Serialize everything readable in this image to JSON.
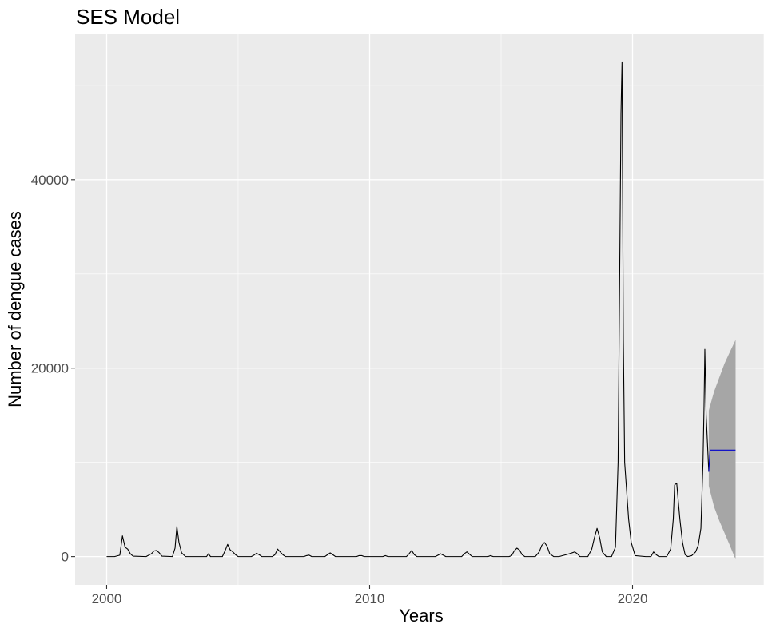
{
  "chart_data": {
    "type": "line",
    "title": "SES Model",
    "xlabel": "Years",
    "ylabel": "Number of dengue cases",
    "xlim": [
      1998.8,
      2025.0
    ],
    "ylim": [
      -3000,
      55500
    ],
    "x_ticks": [
      2000,
      2010,
      2020
    ],
    "y_ticks": [
      0,
      20000,
      40000
    ],
    "grid": true,
    "background": "#ebebeb",
    "grid_color": "#ffffff",
    "series": [
      {
        "color": "#000000",
        "points": [
          [
            2000.0,
            0
          ],
          [
            2000.3,
            0
          ],
          [
            2000.5,
            150
          ],
          [
            2000.6,
            2200
          ],
          [
            2000.7,
            1000
          ],
          [
            2000.8,
            800
          ],
          [
            2000.9,
            300
          ],
          [
            2001.0,
            50
          ],
          [
            2001.5,
            0
          ],
          [
            2001.7,
            300
          ],
          [
            2001.8,
            600
          ],
          [
            2001.9,
            650
          ],
          [
            2002.0,
            400
          ],
          [
            2002.1,
            50
          ],
          [
            2002.5,
            0
          ],
          [
            2002.6,
            900
          ],
          [
            2002.67,
            3200
          ],
          [
            2002.75,
            1500
          ],
          [
            2002.85,
            400
          ],
          [
            2003.0,
            0
          ],
          [
            2003.8,
            0
          ],
          [
            2003.87,
            300
          ],
          [
            2003.95,
            0
          ],
          [
            2004.4,
            0
          ],
          [
            2004.5,
            600
          ],
          [
            2004.6,
            1300
          ],
          [
            2004.7,
            700
          ],
          [
            2004.8,
            500
          ],
          [
            2004.9,
            200
          ],
          [
            2005.0,
            0
          ],
          [
            2005.5,
            0
          ],
          [
            2005.6,
            150
          ],
          [
            2005.7,
            350
          ],
          [
            2005.8,
            200
          ],
          [
            2005.9,
            0
          ],
          [
            2006.3,
            0
          ],
          [
            2006.4,
            200
          ],
          [
            2006.5,
            800
          ],
          [
            2006.6,
            500
          ],
          [
            2006.7,
            200
          ],
          [
            2006.8,
            0
          ],
          [
            2007.5,
            0
          ],
          [
            2007.6,
            100
          ],
          [
            2007.7,
            150
          ],
          [
            2007.8,
            0
          ],
          [
            2008.3,
            0
          ],
          [
            2008.4,
            200
          ],
          [
            2008.5,
            400
          ],
          [
            2008.6,
            200
          ],
          [
            2008.7,
            0
          ],
          [
            2009.5,
            0
          ],
          [
            2009.6,
            100
          ],
          [
            2009.7,
            100
          ],
          [
            2009.8,
            0
          ],
          [
            2010.5,
            0
          ],
          [
            2010.6,
            100
          ],
          [
            2010.7,
            0
          ],
          [
            2011.4,
            0
          ],
          [
            2011.5,
            300
          ],
          [
            2011.6,
            650
          ],
          [
            2011.7,
            200
          ],
          [
            2011.8,
            0
          ],
          [
            2012.5,
            0
          ],
          [
            2012.6,
            150
          ],
          [
            2012.7,
            300
          ],
          [
            2012.8,
            150
          ],
          [
            2012.9,
            0
          ],
          [
            2013.5,
            0
          ],
          [
            2013.6,
            300
          ],
          [
            2013.7,
            500
          ],
          [
            2013.8,
            250
          ],
          [
            2013.9,
            0
          ],
          [
            2014.5,
            0
          ],
          [
            2014.6,
            100
          ],
          [
            2014.7,
            0
          ],
          [
            2015.3,
            0
          ],
          [
            2015.4,
            100
          ],
          [
            2015.5,
            600
          ],
          [
            2015.6,
            900
          ],
          [
            2015.7,
            700
          ],
          [
            2015.8,
            200
          ],
          [
            2015.9,
            0
          ],
          [
            2016.3,
            0
          ],
          [
            2016.45,
            500
          ],
          [
            2016.55,
            1200
          ],
          [
            2016.65,
            1500
          ],
          [
            2016.75,
            1100
          ],
          [
            2016.85,
            300
          ],
          [
            2017.0,
            0
          ],
          [
            2017.2,
            0
          ],
          [
            2017.4,
            150
          ],
          [
            2017.6,
            300
          ],
          [
            2017.8,
            500
          ],
          [
            2017.9,
            300
          ],
          [
            2018.0,
            0
          ],
          [
            2018.3,
            0
          ],
          [
            2018.45,
            800
          ],
          [
            2018.55,
            2000
          ],
          [
            2018.65,
            3000
          ],
          [
            2018.75,
            2000
          ],
          [
            2018.85,
            500
          ],
          [
            2019.0,
            0
          ],
          [
            2019.2,
            0
          ],
          [
            2019.35,
            1000
          ],
          [
            2019.45,
            10000
          ],
          [
            2019.52,
            33000
          ],
          [
            2019.56,
            47000
          ],
          [
            2019.6,
            52500
          ],
          [
            2019.65,
            23000
          ],
          [
            2019.7,
            10000
          ],
          [
            2019.75,
            8000
          ],
          [
            2019.85,
            4000
          ],
          [
            2019.95,
            1500
          ],
          [
            2020.1,
            100
          ],
          [
            2020.5,
            0
          ],
          [
            2020.7,
            0
          ],
          [
            2020.8,
            500
          ],
          [
            2020.9,
            200
          ],
          [
            2021.0,
            0
          ],
          [
            2021.3,
            0
          ],
          [
            2021.45,
            800
          ],
          [
            2021.55,
            4000
          ],
          [
            2021.6,
            7600
          ],
          [
            2021.68,
            7800
          ],
          [
            2021.72,
            6500
          ],
          [
            2021.8,
            4000
          ],
          [
            2021.9,
            1500
          ],
          [
            2022.0,
            200
          ],
          [
            2022.1,
            0
          ],
          [
            2022.25,
            100
          ],
          [
            2022.4,
            500
          ],
          [
            2022.5,
            1200
          ],
          [
            2022.6,
            3000
          ],
          [
            2022.68,
            10000
          ],
          [
            2022.72,
            16000
          ],
          [
            2022.75,
            22000
          ],
          [
            2022.8,
            15000
          ],
          [
            2022.85,
            12000
          ],
          [
            2022.9,
            9000
          ]
        ]
      },
      {
        "color": "#0000cc",
        "points": [
          [
            2022.9,
            9000
          ],
          [
            2022.95,
            11300
          ],
          [
            2023.0,
            11300
          ],
          [
            2023.92,
            11300
          ]
        ]
      }
    ],
    "forecast_interval": {
      "color": "#a6a6a6",
      "upper": [
        [
          2022.9,
          15500
        ],
        [
          2023.1,
          17500
        ],
        [
          2023.3,
          19000
        ],
        [
          2023.5,
          20500
        ],
        [
          2023.7,
          21700
        ],
        [
          2023.92,
          23000
        ]
      ],
      "lower": [
        [
          2022.9,
          7500
        ],
        [
          2023.1,
          5300
        ],
        [
          2023.3,
          3800
        ],
        [
          2023.5,
          2500
        ],
        [
          2023.7,
          1200
        ],
        [
          2023.92,
          -300
        ]
      ]
    }
  }
}
